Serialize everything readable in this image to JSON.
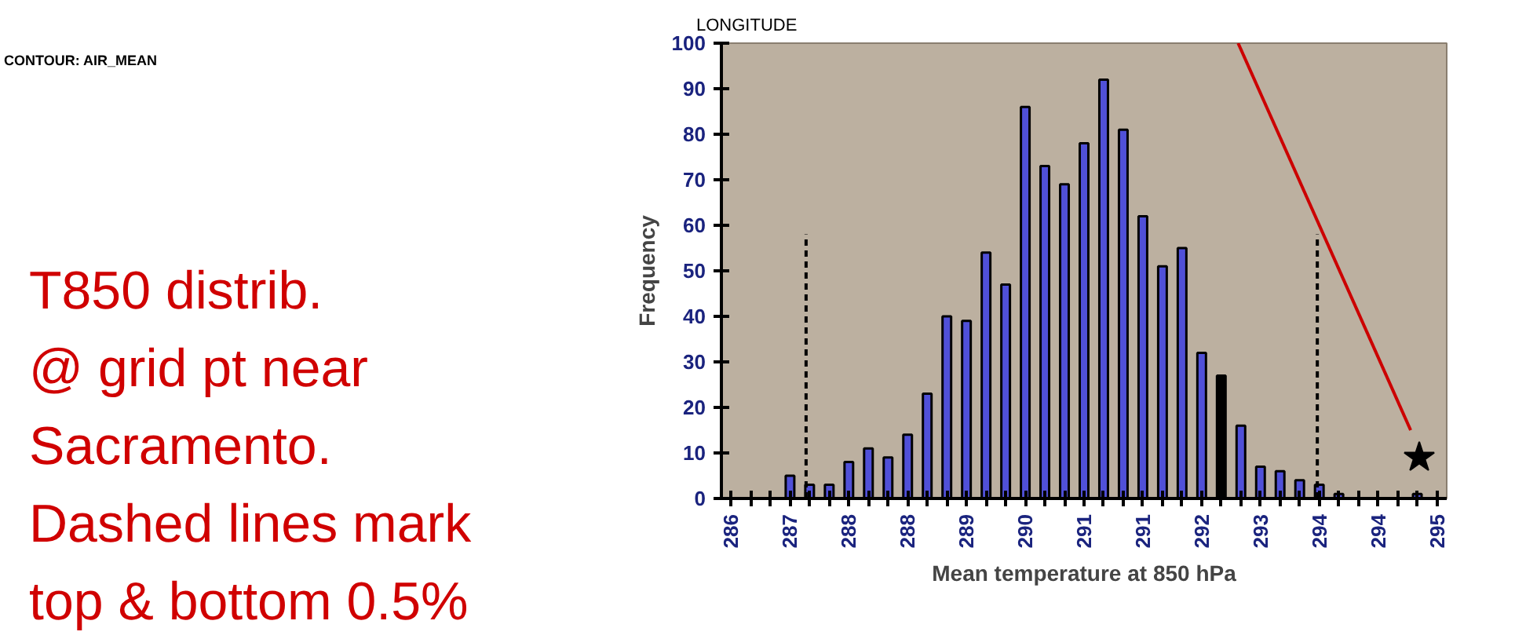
{
  "chart_data": {
    "type": "histogram",
    "xlabel": "Mean temperature at 850 hPa",
    "ylabel": "Frequency",
    "annotations": [
      "CONTOUR: AIR_MEAN",
      "LONGITUDE",
      "T850 distrib.\n@ grid pt near\nSacramento.\nDashed lines mark\ntop & bottom 0.5%"
    ],
    "bins": [
      286.0,
      286.25,
      286.5,
      286.75,
      287.0,
      287.25,
      287.5,
      287.75,
      288.0,
      288.25,
      288.5,
      288.75,
      289.0,
      289.25,
      289.5,
      289.75,
      290.0,
      290.25,
      290.5,
      290.75,
      291.0,
      291.25,
      291.5,
      291.75,
      292.0,
      292.25,
      292.5,
      292.75,
      293.0,
      293.25,
      293.5,
      293.75,
      294.0,
      294.25,
      294.5,
      294.75,
      295.0,
      295.25
    ],
    "values": [
      0,
      0,
      0,
      5,
      3,
      3,
      8,
      11,
      9,
      14,
      23,
      40,
      39,
      54,
      47,
      86,
      73,
      69,
      78,
      92,
      81,
      62,
      51,
      55,
      32,
      27,
      16,
      7,
      6,
      4,
      3,
      1,
      0,
      0,
      0,
      1,
      0
    ],
    "colors": [
      "#5050d8",
      "#5050d8",
      "#5050d8",
      "#5050d8",
      "#5050d8",
      "#5050d8",
      "#5050d8",
      "#5050d8",
      "#5050d8",
      "#5050d8",
      "#5050d8",
      "#5050d8",
      "#5050d8",
      "#5050d8",
      "#5050d8",
      "#5050d8",
      "#5050d8",
      "#5050d8",
      "#5050d8",
      "#5050d8",
      "#5050d8",
      "#5050d8",
      "#5050d8",
      "#5050d8",
      "#5050d8",
      "#000000",
      "#5050d8",
      "#5050d8",
      "#5050d8",
      "#5050d8",
      "#5050d8",
      "#5050d8",
      "#5050d8",
      "#5050d8",
      "#5050d8",
      "#5050d8",
      "#5050d8"
    ],
    "series": [
      {
        "type": "line",
        "color": "#000000",
        "line_style": "dashed",
        "x": [
          287.08,
          287.08
        ],
        "values": [
          0,
          58
        ]
      },
      {
        "type": "line",
        "color": "#000000",
        "line_style": "dashed",
        "x": [
          293.6,
          293.6
        ],
        "values": [
          0,
          58
        ]
      },
      {
        "type": "line",
        "color": "#cc0000",
        "line_style": "solid",
        "x": [
          292.59,
          294.79
        ],
        "values": [
          100,
          15
        ]
      },
      {
        "type": "scatter",
        "color": "#000000",
        "marker": "star",
        "x": [
          294.9
        ],
        "values": [
          9
        ]
      }
    ],
    "xlim": [
      286.0,
      295.25
    ],
    "ylim": [
      0,
      100
    ],
    "xticks": [
      {
        "value": 286.125,
        "label": "286"
      },
      {
        "value": 286.375,
        "label": null
      },
      {
        "value": 286.625,
        "label": null
      },
      {
        "value": 286.875,
        "label": "287"
      },
      {
        "value": 287.125,
        "label": null
      },
      {
        "value": 287.375,
        "label": null
      },
      {
        "value": 287.625,
        "label": "288"
      },
      {
        "value": 287.875,
        "label": null
      },
      {
        "value": 288.125,
        "label": null
      },
      {
        "value": 288.375,
        "label": "288"
      },
      {
        "value": 288.625,
        "label": null
      },
      {
        "value": 288.875,
        "label": null
      },
      {
        "value": 289.125,
        "label": "289"
      },
      {
        "value": 289.375,
        "label": null
      },
      {
        "value": 289.625,
        "label": null
      },
      {
        "value": 289.875,
        "label": "290"
      },
      {
        "value": 290.125,
        "label": null
      },
      {
        "value": 290.375,
        "label": null
      },
      {
        "value": 290.625,
        "label": "291"
      },
      {
        "value": 290.875,
        "label": null
      },
      {
        "value": 291.125,
        "label": null
      },
      {
        "value": 291.375,
        "label": "291"
      },
      {
        "value": 291.625,
        "label": null
      },
      {
        "value": 291.875,
        "label": null
      },
      {
        "value": 292.125,
        "label": "292"
      },
      {
        "value": 292.375,
        "label": null
      },
      {
        "value": 292.625,
        "label": null
      },
      {
        "value": 292.875,
        "label": "293"
      },
      {
        "value": 293.125,
        "label": null
      },
      {
        "value": 293.375,
        "label": null
      },
      {
        "value": 293.625,
        "label": "294"
      },
      {
        "value": 293.875,
        "label": null
      },
      {
        "value": 294.125,
        "label": null
      },
      {
        "value": 294.375,
        "label": "294"
      },
      {
        "value": 294.625,
        "label": null
      },
      {
        "value": 294.875,
        "label": null
      },
      {
        "value": 295.125,
        "label": "295"
      }
    ],
    "yticks": [
      0,
      10,
      20,
      30,
      40,
      50,
      60,
      70,
      80,
      90,
      100
    ],
    "grid": false
  }
}
